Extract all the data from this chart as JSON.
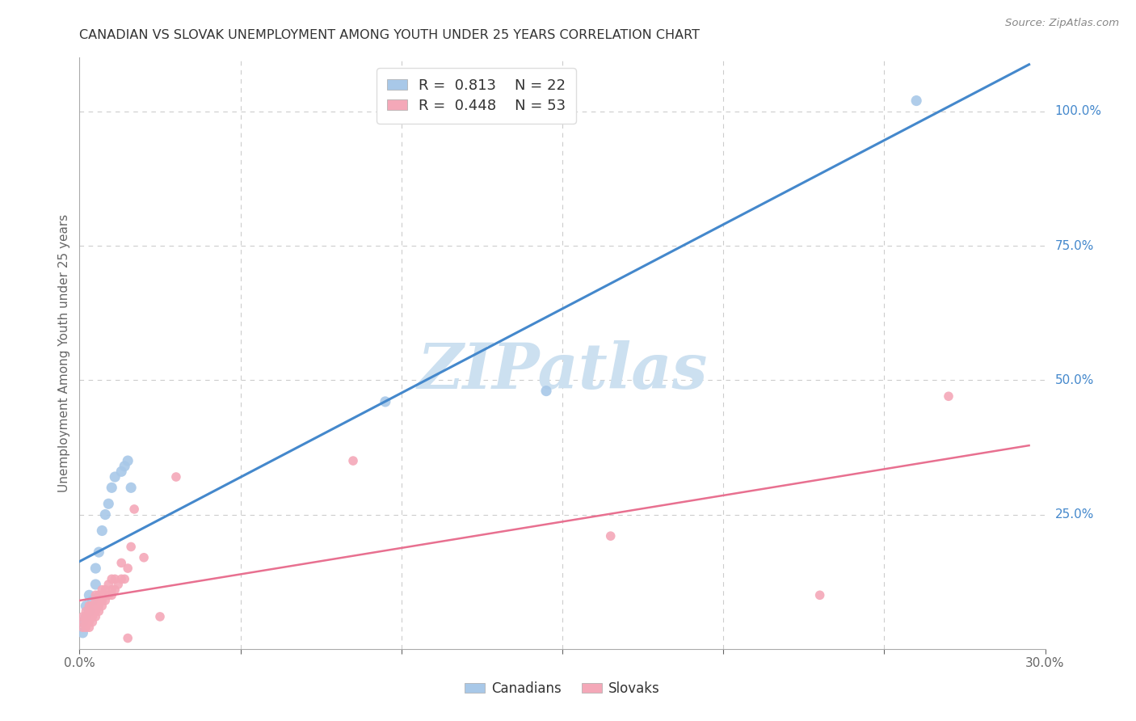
{
  "title": "CANADIAN VS SLOVAK UNEMPLOYMENT AMONG YOUTH UNDER 25 YEARS CORRELATION CHART",
  "source": "Source: ZipAtlas.com",
  "xlabel": "",
  "ylabel": "Unemployment Among Youth under 25 years",
  "xlim": [
    0.0,
    0.3
  ],
  "ylim": [
    0.0,
    1.1
  ],
  "right_yticks": [
    0.0,
    0.25,
    0.5,
    0.75,
    1.0
  ],
  "right_yticklabels": [
    "",
    "25.0%",
    "50.0%",
    "75.0%",
    "100.0%"
  ],
  "legend1_r": "0.813",
  "legend1_n": "22",
  "legend2_r": "0.448",
  "legend2_n": "53",
  "blue_scatter_color": "#a8c8e8",
  "pink_scatter_color": "#f4a8b8",
  "blue_line_color": "#4488cc",
  "pink_line_color": "#e87090",
  "canadians_x": [
    0.001,
    0.001,
    0.002,
    0.002,
    0.003,
    0.003,
    0.004,
    0.005,
    0.005,
    0.006,
    0.007,
    0.008,
    0.009,
    0.01,
    0.011,
    0.013,
    0.014,
    0.015,
    0.016,
    0.095,
    0.145,
    0.26
  ],
  "canadians_y": [
    0.03,
    0.05,
    0.06,
    0.08,
    0.07,
    0.1,
    0.09,
    0.12,
    0.15,
    0.18,
    0.22,
    0.25,
    0.27,
    0.3,
    0.32,
    0.33,
    0.34,
    0.35,
    0.3,
    0.46,
    0.48,
    1.02
  ],
  "slovaks_x": [
    0.001,
    0.001,
    0.001,
    0.002,
    0.002,
    0.002,
    0.002,
    0.003,
    0.003,
    0.003,
    0.003,
    0.003,
    0.004,
    0.004,
    0.004,
    0.004,
    0.005,
    0.005,
    0.005,
    0.005,
    0.005,
    0.006,
    0.006,
    0.006,
    0.006,
    0.007,
    0.007,
    0.007,
    0.007,
    0.008,
    0.008,
    0.009,
    0.009,
    0.01,
    0.01,
    0.01,
    0.011,
    0.011,
    0.012,
    0.013,
    0.013,
    0.014,
    0.015,
    0.015,
    0.016,
    0.017,
    0.02,
    0.025,
    0.03,
    0.085,
    0.165,
    0.23,
    0.27
  ],
  "slovaks_y": [
    0.04,
    0.05,
    0.06,
    0.04,
    0.05,
    0.06,
    0.07,
    0.04,
    0.05,
    0.06,
    0.07,
    0.08,
    0.05,
    0.06,
    0.07,
    0.08,
    0.06,
    0.07,
    0.08,
    0.09,
    0.1,
    0.07,
    0.08,
    0.09,
    0.1,
    0.08,
    0.09,
    0.1,
    0.11,
    0.09,
    0.11,
    0.1,
    0.12,
    0.1,
    0.11,
    0.13,
    0.11,
    0.13,
    0.12,
    0.13,
    0.16,
    0.13,
    0.15,
    0.02,
    0.19,
    0.26,
    0.17,
    0.06,
    0.32,
    0.35,
    0.21,
    0.1,
    0.47
  ],
  "watermark_text": "ZIPatlas",
  "watermark_color": "#cce0f0",
  "background_color": "#ffffff",
  "grid_color": "#cccccc",
  "right_tick_color": "#4488cc",
  "title_color": "#333333",
  "ylabel_color": "#666666"
}
